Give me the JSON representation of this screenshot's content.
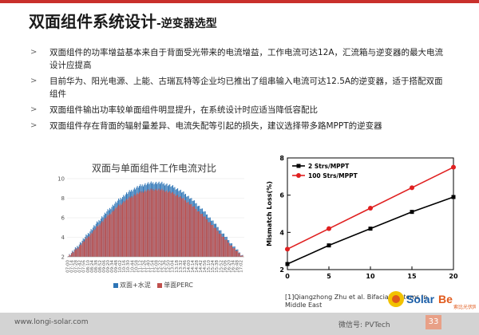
{
  "slide": {
    "title_main": "双面组件系统设计",
    "title_sub": "-逆变器选型",
    "bullets": [
      "双面组件的功率增益基本来自于背面受光带来的电流增益，工作电流可达12A，汇流箱与逆变器的最大电流设计应提高",
      "目前华为、阳光电源、上能、古瑞瓦特等企业均已推出了组串输入电流可达12.5A的逆变器，适于搭配双面组件",
      "双面组件输出功率较单面组件明显提升，在系统设计时应适当降低容配比",
      "双面组件存在背面的辐射量差异、电流失配等引起的损失，建议选择带多路MPPT的逆变器"
    ],
    "bullet_marker": ">",
    "reference": "[1]Qiangzhong Zhu et al. Bifacial Systems in Middle East",
    "footer_url": "www.longi-solar.com",
    "page_number": "33",
    "wechat": "微信号: PVTech",
    "brand_logo": "SolarBe 索比光伏网",
    "colors": {
      "accent": "#c9302c",
      "bar_blue": "#2e75b6",
      "bar_red": "#c0504d"
    }
  },
  "chart_data": [
    {
      "type": "bar",
      "title": "双面与单面组件工作电流对比",
      "categories": [
        "07:00",
        "07:14",
        "07:28",
        "07:42",
        "07:56",
        "08:10",
        "08:24",
        "08:38",
        "08:52",
        "09:06",
        "09:20",
        "09:34",
        "09:48",
        "10:02",
        "10:16",
        "10:30",
        "10:44",
        "10:58",
        "11:12",
        "11:26",
        "11:40",
        "11:54",
        "12:08",
        "12:22",
        "12:36",
        "12:50",
        "13:04",
        "13:18",
        "13:32",
        "13:46",
        "14:00",
        "14:14",
        "14:28",
        "14:42",
        "14:56",
        "15:10",
        "15:24",
        "15:38",
        "15:52",
        "16:06",
        "16:20",
        "16:34",
        "16:48",
        "17:02"
      ],
      "series": [
        {
          "name": "双面+水泥",
          "color": "#2e75b6"
        },
        {
          "name": "单面PERC",
          "color": "#c0504d"
        }
      ],
      "y_ticks": [
        2,
        4,
        6,
        8,
        10
      ],
      "ylim": [
        2,
        10
      ],
      "note": "hump-shaped daily current profile; bifacial peaks ~9.6 A, monofacial peaks ~8.9 A"
    },
    {
      "type": "line",
      "x": [
        0,
        5,
        10,
        15,
        20
      ],
      "xlim": [
        0,
        20
      ],
      "ylim": [
        2,
        8
      ],
      "y_ticks": [
        2,
        4,
        6,
        8
      ],
      "x_ticks": [
        0,
        5,
        10,
        15,
        20
      ],
      "ylabel": "Mismatch Loss(%)",
      "series": [
        {
          "name": "2 Strs/MPPT",
          "color": "#000000",
          "marker": "square",
          "values": [
            2.3,
            3.3,
            4.2,
            5.1,
            5.9
          ]
        },
        {
          "name": "100 Strs/MPPT",
          "color": "#e02020",
          "marker": "circle",
          "values": [
            3.1,
            4.2,
            5.3,
            6.4,
            7.5
          ]
        }
      ],
      "legend": "top-left"
    }
  ]
}
